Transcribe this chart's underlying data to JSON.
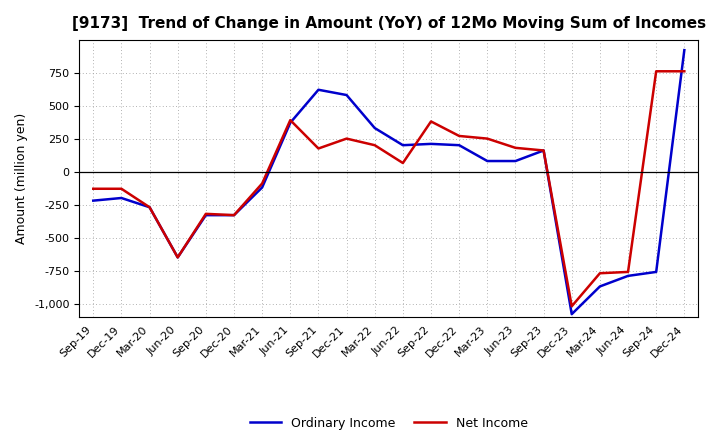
{
  "title": "[9173]  Trend of Change in Amount (YoY) of 12Mo Moving Sum of Incomes",
  "ylabel": "Amount (million yen)",
  "x_labels": [
    "Sep-19",
    "Dec-19",
    "Mar-20",
    "Jun-20",
    "Sep-20",
    "Dec-20",
    "Mar-21",
    "Jun-21",
    "Sep-21",
    "Dec-21",
    "Mar-22",
    "Jun-22",
    "Sep-22",
    "Dec-22",
    "Mar-23",
    "Jun-23",
    "Sep-23",
    "Dec-23",
    "Mar-24",
    "Jun-24",
    "Sep-24",
    "Dec-24"
  ],
  "ordinary_income": [
    -220,
    -200,
    -270,
    -650,
    -330,
    -330,
    -120,
    370,
    620,
    580,
    330,
    200,
    210,
    200,
    80,
    80,
    160,
    -1080,
    -870,
    -790,
    -760,
    920
  ],
  "net_income": [
    -130,
    -130,
    -270,
    -650,
    -320,
    -330,
    -90,
    390,
    175,
    250,
    200,
    65,
    380,
    270,
    250,
    180,
    160,
    -1020,
    -770,
    -760,
    760,
    760
  ],
  "ordinary_color": "#0000cc",
  "net_color": "#cc0000",
  "background_color": "#ffffff",
  "grid_color": "#aaaaaa",
  "ylim": [
    -1100,
    1000
  ],
  "yticks": [
    -1000,
    -750,
    -500,
    -250,
    0,
    250,
    500,
    750
  ],
  "legend_labels": [
    "Ordinary Income",
    "Net Income"
  ],
  "title_fontsize": 11,
  "axis_fontsize": 8,
  "ylabel_fontsize": 9
}
